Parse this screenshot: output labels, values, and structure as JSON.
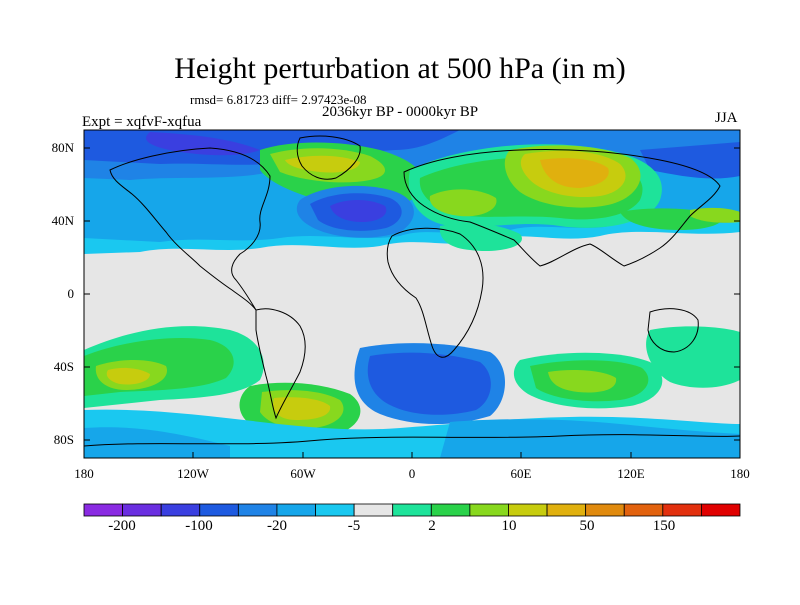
{
  "header": {
    "title": "Height perturbation at 500 hPa (in m)",
    "stats": "rmsd= 6.81723 diff= 2.97423e-08",
    "period": "2036kyr BP - 0000kyr BP",
    "experiment": "Expt = xqfvF-xqfua",
    "season": "JJA"
  },
  "axes": {
    "lat_ticks": [
      "80N",
      "40N",
      "0",
      "40S",
      "80S"
    ],
    "lon_ticks": [
      "180",
      "120W",
      "60W",
      "0",
      "60E",
      "120E",
      "180"
    ]
  },
  "colorbar": {
    "labels": [
      "-200",
      "-100",
      "-20",
      "-5",
      "2",
      "10",
      "50",
      "150"
    ],
    "colors": [
      "#8a2be2",
      "#6a2ee0",
      "#3a3fe0",
      "#1e5ae0",
      "#1f83e6",
      "#16a6ea",
      "#1ac8f0",
      "#e6e6e6",
      "#1ee39a",
      "#2ad24a",
      "#88d81e",
      "#c7cc0e",
      "#e0b00e",
      "#e08a0e",
      "#e2620e",
      "#e2300e",
      "#e00000"
    ]
  },
  "map": {
    "projection": "cylindrical-equidistant",
    "background_color": "#e6e6e6"
  }
}
